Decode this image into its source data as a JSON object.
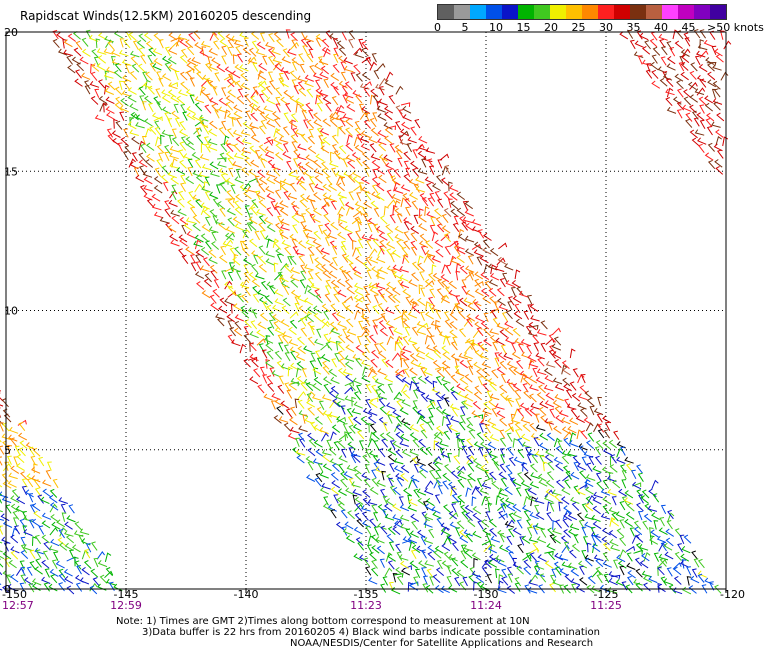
{
  "title": "Rapidscat Winds(12.5KM) 20160205 descending",
  "legend": {
    "colors": [
      "#606060",
      "#9a9a9a",
      "#00a8ff",
      "#0050e8",
      "#0a14c8",
      "#00b400",
      "#40c820",
      "#f0f000",
      "#ffc000",
      "#ff8800",
      "#ff2020",
      "#d00000",
      "#7a3010",
      "#b86040",
      "#ff40ff",
      "#c000c0",
      "#8000c0",
      "#4000a0"
    ],
    "labels": [
      "0",
      "5",
      "10",
      "15",
      "20",
      "25",
      "30",
      "35",
      "40",
      "45",
      ">50 knots"
    ],
    "knots_per_swatch": 2.5
  },
  "axes": {
    "lat_ticks": [
      "0",
      "5",
      "10",
      "15",
      "20"
    ],
    "lon_ticks": [
      "-150",
      "-145",
      "-140",
      "-135",
      "-130",
      "-125",
      "-120"
    ],
    "times": [
      "12:57",
      "12:59",
      "11:23",
      "11:24",
      "11:25"
    ],
    "lon_range": [
      -150,
      -120
    ],
    "lat_range": [
      0,
      20
    ],
    "grid": "dotted"
  },
  "notes": {
    "line1": "Note: 1) Times are GMT 2)Times along bottom correspond to measurement at 10N",
    "line2": "3)Data buffer is 22 hrs from 20160205 4) Black wind barbs indicate possible contamination",
    "line3": "NOAA/NESDIS/Center for Satellite Applications and Research"
  },
  "colors": {
    "time_label": "#800080",
    "grid": "#000000"
  }
}
